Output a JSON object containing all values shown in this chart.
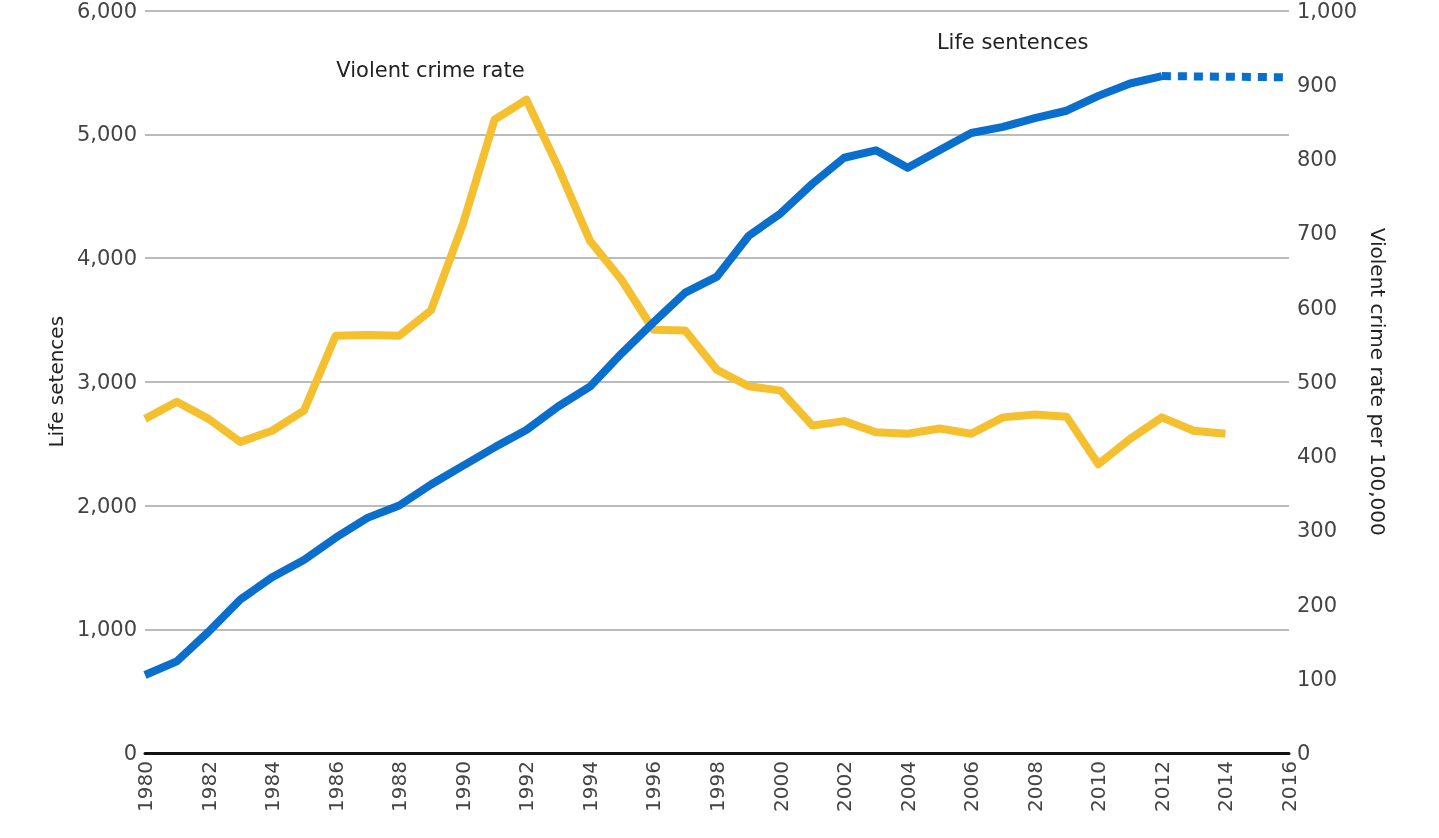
{
  "chart_data": {
    "type": "line",
    "ylabel": "Life setences",
    "y2label": "Violent crime rate per 100,000",
    "xlim": [
      1980,
      2016
    ],
    "xticks": [
      1980,
      1982,
      1984,
      1986,
      1988,
      1990,
      1992,
      1994,
      1996,
      1998,
      2000,
      2002,
      2004,
      2006,
      2008,
      2010,
      2012,
      2014,
      2016
    ],
    "ylim": [
      0,
      6000
    ],
    "yticks": [
      {
        "value": 0,
        "label": "0"
      },
      {
        "value": 1000,
        "label": "1,000"
      },
      {
        "value": 2000,
        "label": "2,000"
      },
      {
        "value": 3000,
        "label": "3,000"
      },
      {
        "value": 4000,
        "label": "4,000"
      },
      {
        "value": 5000,
        "label": "5,000"
      },
      {
        "value": 6000,
        "label": "6,000"
      }
    ],
    "y2lim": [
      0,
      1000
    ],
    "y2ticks": [
      0,
      100,
      200,
      300,
      400,
      500,
      600,
      700,
      800,
      900,
      {
        "value": 1000,
        "label": "1,000"
      }
    ],
    "grid": "y",
    "legend": false,
    "marker": "none",
    "series": [
      {
        "name": "Violent crime rate",
        "color": "#f5c030",
        "axis": "y2",
        "x": [
          1980,
          1981,
          1982,
          1983,
          1984,
          1985,
          1986,
          1987,
          1988,
          1989,
          1990,
          1991,
          1992,
          1993,
          1994,
          1995,
          1996,
          1997,
          1998,
          1999,
          2000,
          2001,
          2002,
          2003,
          2004,
          2005,
          2006,
          2007,
          2008,
          2009,
          2010,
          2011,
          2012,
          2013,
          2014
        ],
        "values": [
          450,
          473,
          450,
          419,
          434,
          461,
          562,
          563,
          562,
          596,
          712,
          853,
          880,
          789,
          690,
          637,
          570,
          569,
          516,
          494,
          488,
          441,
          447,
          432,
          430,
          437,
          430,
          452,
          456,
          453,
          389,
          423,
          452,
          434,
          430
        ]
      },
      {
        "name": "Life sentences",
        "color": "#0a6ecc",
        "x": [
          1980,
          1981,
          1982,
          1983,
          1984,
          1985,
          1986,
          1987,
          1988,
          1989,
          1990,
          1991,
          1992,
          1993,
          1994,
          1995,
          1996,
          1997,
          1998,
          1999,
          2000,
          2001,
          2002,
          2003,
          2004,
          2005,
          2006,
          2007,
          2008,
          2009,
          2010,
          2011,
          2012
        ],
        "values": [
          630,
          740,
          980,
          1240,
          1420,
          1560,
          1740,
          1900,
          2000,
          2170,
          2320,
          2470,
          2610,
          2800,
          2960,
          3230,
          3480,
          3720,
          3850,
          4180,
          4360,
          4600,
          4810,
          4870,
          4730,
          4870,
          5010,
          5060,
          5130,
          5190,
          5310,
          5410,
          5470
        ]
      },
      {
        "color": "#0a6ecc",
        "line_style": "dashed",
        "x": [
          2012,
          2016
        ],
        "values": [
          5470,
          5460
        ]
      }
    ]
  }
}
